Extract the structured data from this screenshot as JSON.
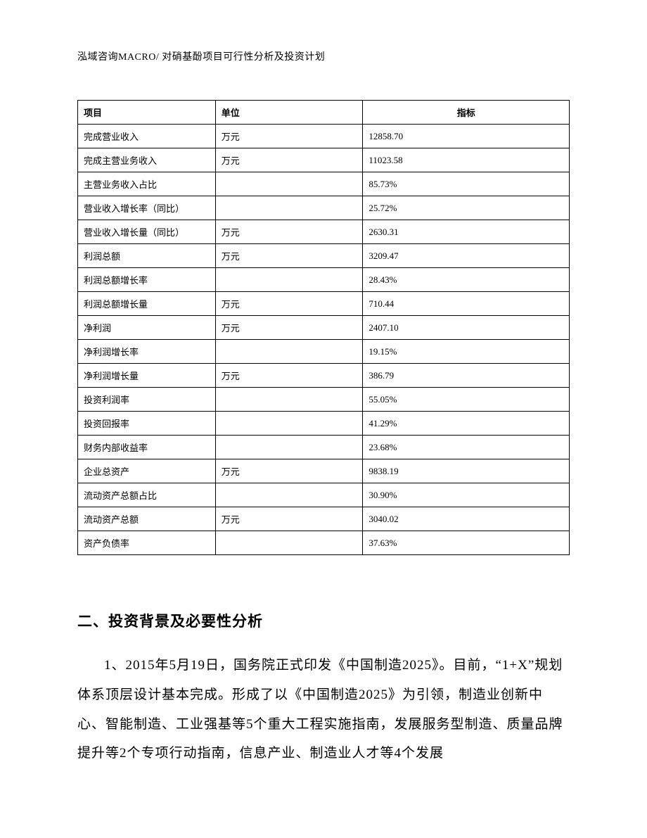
{
  "header": "泓域咨询MACRO/ 对硝基酚项目可行性分析及投资计划",
  "table": {
    "columns": [
      "项目",
      "单位",
      "指标"
    ],
    "rows": [
      [
        "完成营业收入",
        "万元",
        "12858.70"
      ],
      [
        "完成主营业务收入",
        "万元",
        "11023.58"
      ],
      [
        "主营业务收入占比",
        "",
        "85.73%"
      ],
      [
        "营业收入增长率（同比）",
        "",
        "25.72%"
      ],
      [
        "营业收入增长量（同比）",
        "万元",
        "2630.31"
      ],
      [
        "利润总额",
        "万元",
        "3209.47"
      ],
      [
        "利润总额增长率",
        "",
        "28.43%"
      ],
      [
        "利润总额增长量",
        "万元",
        "710.44"
      ],
      [
        "净利润",
        "万元",
        "2407.10"
      ],
      [
        "净利润增长率",
        "",
        "19.15%"
      ],
      [
        "净利润增长量",
        "万元",
        "386.79"
      ],
      [
        "投资利润率",
        "",
        "55.05%"
      ],
      [
        "投资回报率",
        "",
        "41.29%"
      ],
      [
        "财务内部收益率",
        "",
        "23.68%"
      ],
      [
        "企业总资产",
        "万元",
        "9838.19"
      ],
      [
        "流动资产总额占比",
        "",
        "30.90%"
      ],
      [
        "流动资产总额",
        "万元",
        "3040.02"
      ],
      [
        "资产负债率",
        "",
        "37.63%"
      ]
    ]
  },
  "section": {
    "heading": "二、投资背景及必要性分析",
    "paragraph": "1、2015年5月19日，国务院正式印发《中国制造2025》。目前，“1+X”规划体系顶层设计基本完成。形成了以《中国制造2025》为引领，制造业创新中心、智能制造、工业强基等5个重大工程实施指南，发展服务型制造、质量品牌提升等2个专项行动指南，信息产业、制造业人才等4个发展"
  }
}
